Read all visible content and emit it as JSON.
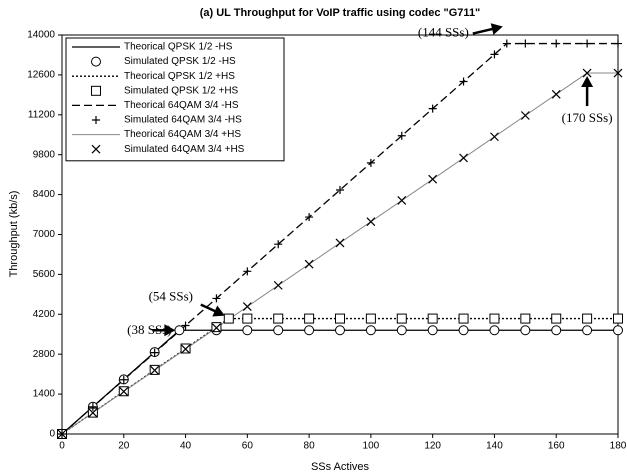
{
  "chart_data": {
    "type": "line",
    "title": "(a) UL Throughput for VoIP traffic using codec \"G711\"",
    "x_label": "SSs Actives",
    "y_label": "Throughput (kb/s)",
    "xlim": [
      0,
      180
    ],
    "xticks": [
      0,
      20,
      40,
      60,
      80,
      100,
      120,
      140,
      160,
      180
    ],
    "ylim": [
      0,
      14000
    ],
    "yticks": [
      0,
      1400,
      2800,
      4200,
      5600,
      7000,
      8400,
      9800,
      11200,
      12600,
      14000
    ],
    "legend": "upper left",
    "series": [
      {
        "name": "Theorical QPSK 1/2 -HS",
        "color": "#000000",
        "dash": "solid",
        "x": [
          0,
          38,
          180
        ],
        "values": [
          0,
          3640,
          3640
        ]
      },
      {
        "name": "Simulated QPSK 1/2 -HS",
        "color": "#000000",
        "marker": "circle",
        "x": [
          0,
          10,
          20,
          30,
          38,
          50,
          60,
          70,
          80,
          90,
          100,
          110,
          120,
          130,
          140,
          150,
          160,
          170,
          180
        ],
        "values": [
          0,
          958,
          1916,
          2874,
          3640,
          3640,
          3640,
          3640,
          3640,
          3640,
          3640,
          3640,
          3640,
          3640,
          3640,
          3640,
          3640,
          3640,
          3640
        ]
      },
      {
        "name": "Theorical QPSK 1/2 +HS",
        "color": "#000000",
        "dash": "dotted",
        "x": [
          0,
          54,
          180
        ],
        "values": [
          0,
          4050,
          4050
        ]
      },
      {
        "name": "Simulated QPSK 1/2 +HS",
        "color": "#000000",
        "marker": "square",
        "x": [
          0,
          10,
          20,
          30,
          40,
          50,
          54,
          60,
          70,
          80,
          90,
          100,
          110,
          120,
          130,
          140,
          150,
          160,
          170,
          180
        ],
        "values": [
          0,
          750,
          1500,
          2250,
          3000,
          3750,
          4050,
          4050,
          4050,
          4050,
          4050,
          4050,
          4050,
          4050,
          4050,
          4050,
          4050,
          4050,
          4050,
          4050
        ]
      },
      {
        "name": "Theorical 64QAM 3/4 -HS",
        "color": "#000000",
        "dash": "dashed",
        "x": [
          0,
          144,
          180
        ],
        "values": [
          0,
          13700,
          13700
        ]
      },
      {
        "name": "Simulated 64QAM 3/4 -HS",
        "color": "#000000",
        "marker": "plus",
        "x": [
          0,
          10,
          20,
          30,
          40,
          50,
          60,
          70,
          80,
          90,
          100,
          110,
          120,
          130,
          140,
          144,
          150,
          160,
          170,
          180
        ],
        "values": [
          0,
          951,
          1903,
          2854,
          3806,
          4757,
          5708,
          6660,
          7611,
          8562,
          9514,
          10465,
          11416,
          12368,
          13319,
          13700,
          13700,
          13700,
          13700,
          13700
        ]
      },
      {
        "name": "Theorical 64QAM 3/4 +HS",
        "color": "#888888",
        "dash": "solid",
        "x": [
          0,
          170,
          180
        ],
        "values": [
          0,
          12665,
          12665
        ]
      },
      {
        "name": "Simulated 64QAM 3/4 +HS",
        "color": "#000000",
        "marker": "cross",
        "x": [
          0,
          10,
          20,
          30,
          40,
          50,
          60,
          70,
          80,
          90,
          100,
          110,
          120,
          130,
          140,
          150,
          160,
          170,
          180
        ],
        "values": [
          0,
          745,
          1490,
          2235,
          2980,
          3725,
          4470,
          5215,
          5960,
          6705,
          7450,
          8195,
          8940,
          9685,
          10430,
          11175,
          11920,
          12665,
          12665
        ]
      }
    ],
    "annotations": [
      {
        "text": "(38 SSs)",
        "x": 38,
        "y": 3640
      },
      {
        "text": "(54 SSs)",
        "x": 54,
        "y": 4050
      },
      {
        "text": "(144 SSs)",
        "x": 144,
        "y": 13700
      },
      {
        "text": "(170 SSs)",
        "x": 170,
        "y": 12665
      }
    ]
  }
}
